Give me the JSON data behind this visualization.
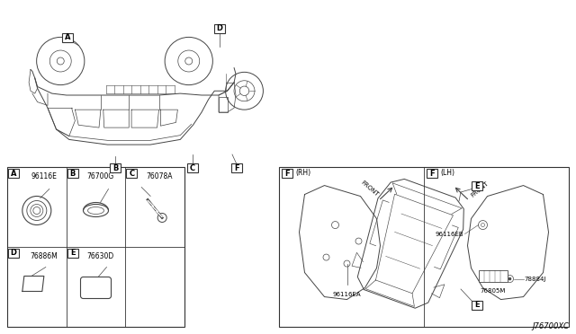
{
  "bg_color": "#ffffff",
  "border_color": "#333333",
  "line_color": "#444444",
  "text_color": "#000000",
  "fig_width": 6.4,
  "fig_height": 3.72,
  "dpi": 100,
  "part_codes": {
    "A": "96116E",
    "B": "76700G",
    "C": "76078A",
    "D": "76886M",
    "E": "76630D",
    "F_RH_label": "96116EA",
    "F_LH_label1": "96116EB",
    "F_LH_label2": "76805M",
    "F_LH_label3": "78884J"
  },
  "footer_text": "J76700XC"
}
